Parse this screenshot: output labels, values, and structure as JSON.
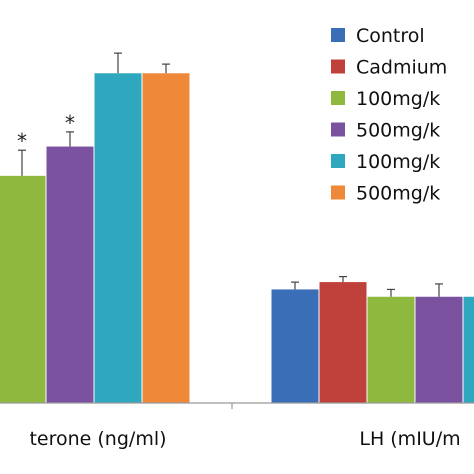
{
  "chart_data": {
    "type": "bar",
    "categories": [
      "terone (ng/ml)",
      "LH (mIU/m"
    ],
    "series": [
      {
        "name": "Control",
        "color": "#3a6fb8",
        "values": [
          null,
          3.1
        ],
        "errors": [
          null,
          0.2
        ]
      },
      {
        "name": "Cadmium",
        "color": "#c0403b",
        "values": [
          null,
          3.3
        ],
        "errors": [
          null,
          0.15
        ]
      },
      {
        "name": "100mg/k",
        "color": "#8fb83f",
        "values": [
          6.2,
          2.9
        ],
        "errors": [
          0.7,
          0.2
        ]
      },
      {
        "name": "500mg/k",
        "color": "#7a52a0",
        "values": [
          7.0,
          2.9
        ],
        "errors": [
          0.4,
          0.35
        ]
      },
      {
        "name": "100mg/k",
        "color": "#2fa7bf",
        "values": [
          9.0,
          2.9
        ],
        "errors": [
          0.55,
          0.4
        ]
      },
      {
        "name": "500mg/k",
        "color": "#f0883a",
        "values": [
          9.0,
          2.9
        ],
        "errors": [
          0.25,
          0.2
        ]
      }
    ],
    "annotations": [
      {
        "text": "*",
        "series": 2,
        "category": 0
      },
      {
        "text": "*",
        "series": 3,
        "category": 0
      }
    ],
    "ylim": [
      0,
      11
    ],
    "grid": false,
    "legend_position": "top-right",
    "title": "",
    "xlabel": "",
    "ylabel": ""
  }
}
